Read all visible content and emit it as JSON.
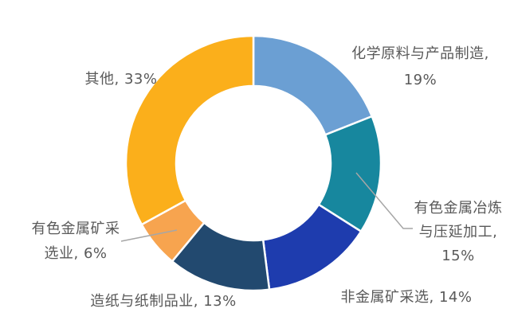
{
  "page": {
    "background": "#FFFFFF"
  },
  "chart_data": {
    "type": "pie",
    "subtype": "donut",
    "title": "",
    "categories": [
      "化学原料与产品制造",
      "有色金属冶炼与压延加工",
      "非金属矿采选",
      "造纸与纸制品业",
      "有色金属矿采选业",
      "其他"
    ],
    "values": [
      19,
      15,
      14,
      13,
      6,
      33
    ],
    "unit": "%",
    "colors": [
      "#6B9FD3",
      "#17879E",
      "#1E3CAE",
      "#22496F",
      "#F7A44F",
      "#FBAF1B"
    ],
    "start_angle": "top",
    "direction": "clockwise",
    "donut_hole_ratio": 0.61,
    "legend_position": "none",
    "slice_gap_color": "#FFFFFF",
    "label_color": "#595959",
    "leader_line_color": "#A6A6A6",
    "background": "#FFFFFF",
    "labels": [
      {
        "text": "化学原料与产品制造,\n19%"
      },
      {
        "text": "有色金属冶炼\n与压延加工,\n15%"
      },
      {
        "text": "非金属矿采选, 14%"
      },
      {
        "text": "造纸与纸制品业, 13%"
      },
      {
        "text": "有色金属矿采\n选业, 6%"
      },
      {
        "text": "其他, 33%"
      }
    ]
  }
}
